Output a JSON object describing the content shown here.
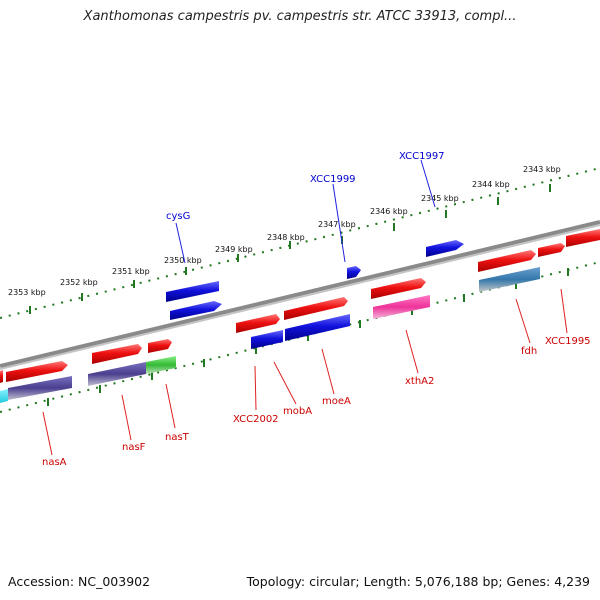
{
  "title": "Xanthomonas campestris pv. campestris str. ATCC 33913, compl...",
  "footer": {
    "accession": "Accession: NC_003902",
    "summary": "Topology: circular; Length: 5,076,188 bp; Genes: 4,239"
  },
  "ruler_labels": [
    "2353 kbp",
    "2352 kbp",
    "2351 kbp",
    "2350 kbp",
    "2349 kbp",
    "2348 kbp",
    "2347 kbp",
    "2346 kbp",
    "2345 kbp",
    "2344 kbp",
    "2343 kbp"
  ],
  "gene_labels": {
    "top": [
      "cysG",
      "XCC1999",
      "XCC1997"
    ],
    "bottom": [
      "nasA",
      "nasF",
      "nasT",
      "XCC2002",
      "mobA",
      "moeA",
      "xthA2",
      "fdh",
      "XCC1995"
    ]
  },
  "colors": {
    "forward_gene": "#ee1111",
    "reverse_gene": "#1111dd",
    "nas_purple": "#4a3f8f",
    "nas_green": "#33bb33",
    "xthA2_pink": "#ee3399",
    "fdh_blue": "#3377aa",
    "cyan": "#22ccdd",
    "backbone": "#8a8a8a",
    "ticks": "#227722",
    "top_label": "#0000cc",
    "bottom_label": "#cc0000"
  }
}
